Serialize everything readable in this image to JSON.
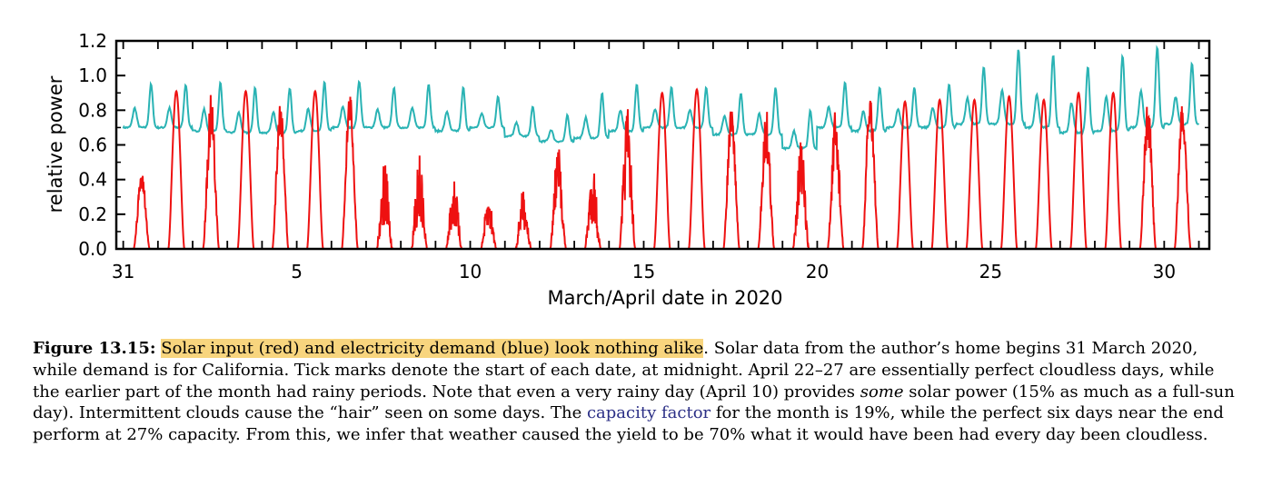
{
  "chart_data": {
    "type": "line",
    "title": "",
    "xlabel": "March/April date in 2020",
    "ylabel": "relative power",
    "xlim": [
      30.8,
      31.3
    ],
    "ylim": [
      0.0,
      1.2
    ],
    "x_unit": "day index (31 = March 31, 1..30 = April dates)",
    "x_tick_positions": [
      31,
      5,
      10,
      15,
      20,
      25,
      30
    ],
    "x_ticks": [
      "31",
      "5",
      "10",
      "15",
      "20",
      "25",
      "30"
    ],
    "y_ticks": [
      "0.0",
      "0.2",
      "0.4",
      "0.6",
      "0.8",
      "1.0",
      "1.2"
    ],
    "legend": "none",
    "grid": false,
    "series": [
      {
        "color": "#2ab3b4",
        "daily_peak_values": [
          0.95,
          0.95,
          0.96,
          0.93,
          0.93,
          0.96,
          0.97,
          0.93,
          0.95,
          0.93,
          0.88,
          0.82,
          0.77,
          0.9,
          0.95,
          0.93,
          0.93,
          0.9,
          0.93,
          0.8,
          0.96,
          0.93,
          0.93,
          0.95,
          1.05,
          1.15,
          1.12,
          1.05,
          1.12,
          1.17,
          1.07
        ],
        "daily_trough_values": [
          0.7,
          0.7,
          0.68,
          0.67,
          0.67,
          0.68,
          0.7,
          0.7,
          0.7,
          0.68,
          0.7,
          0.65,
          0.62,
          0.64,
          0.68,
          0.7,
          0.7,
          0.66,
          0.66,
          0.58,
          0.7,
          0.68,
          0.7,
          0.7,
          0.72,
          0.72,
          0.7,
          0.67,
          0.68,
          0.7,
          0.72
        ]
      },
      {
        "color": "#ee1111",
        "daily_peak_values": [
          0.44,
          0.91,
          0.89,
          0.91,
          0.88,
          0.91,
          0.91,
          0.52,
          0.55,
          0.42,
          0.3,
          0.35,
          0.6,
          0.5,
          0.82,
          0.9,
          0.92,
          0.82,
          0.82,
          0.65,
          0.8,
          0.92,
          0.85,
          0.86,
          0.86,
          0.88,
          0.86,
          0.9,
          0.9,
          0.86,
          0.88
        ],
        "daily_choppiness": [
          0.3,
          0.05,
          0.4,
          0.05,
          0.3,
          0.1,
          0.25,
          0.9,
          0.85,
          0.85,
          0.8,
          0.8,
          0.65,
          0.85,
          0.7,
          0.05,
          0.05,
          0.3,
          0.45,
          0.7,
          0.55,
          0.3,
          0.05,
          0.05,
          0.05,
          0.05,
          0.05,
          0.05,
          0.05,
          0.35,
          0.3
        ]
      }
    ]
  },
  "caption": {
    "label": "Figure 13.15:",
    "highlighted": "Solar input (red) and electricity demand (blue) look nothing alike",
    "part1": ". Solar data from the author’s home begins 31 March 2020, while demand is for California. Tick marks denote the start of each date, at midnight. April 22–27 are essentially perfect cloudless days, while the earlier part of the month had rainy periods. Note that even a very rainy day (April 10) provides ",
    "emphasis": "some",
    "part2": " solar power (15% as much as a full-sun day). Intermittent clouds cause the “hair” seen on some days. The ",
    "link": "capacity factor",
    "part3": " for the month is 19%, while the perfect six days near the end perform at 27% capacity. From this, we infer that weather caused the yield to be 70% what it would have been had every day been cloudless."
  }
}
